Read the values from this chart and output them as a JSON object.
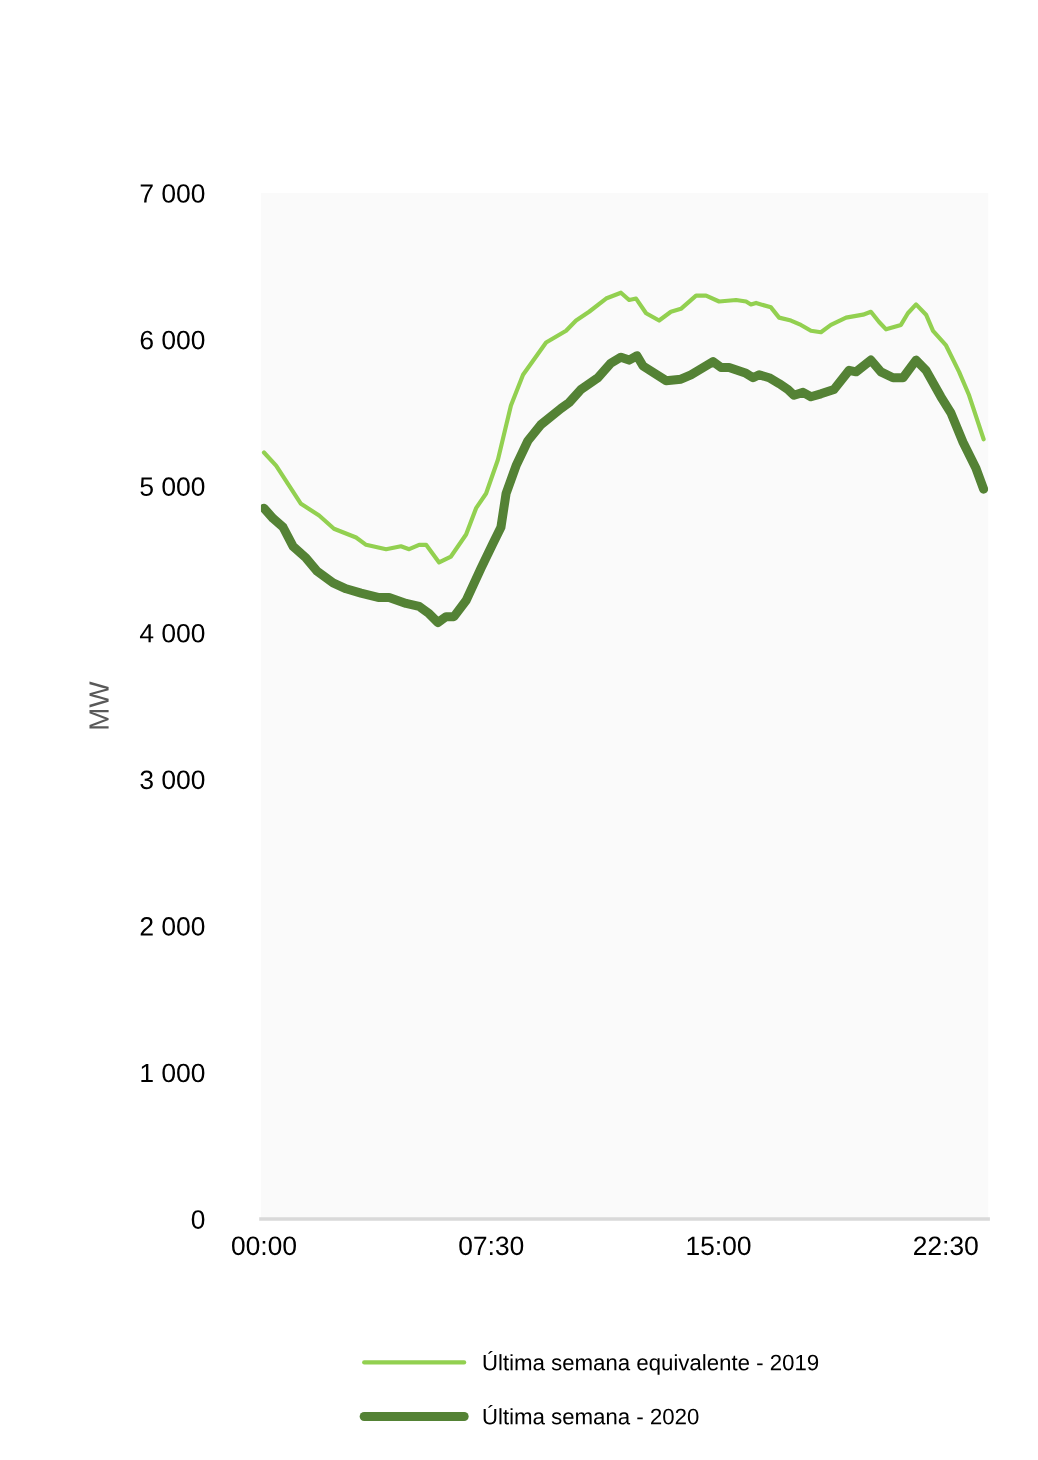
{
  "chart_data": {
    "type": "line",
    "ylabel": "MW",
    "ylim": [
      0,
      7000
    ],
    "yticks": [
      {
        "value": 0,
        "label": "0"
      },
      {
        "value": 1000,
        "label": "1 000"
      },
      {
        "value": 2000,
        "label": "2 000"
      },
      {
        "value": 3000,
        "label": "3 000"
      },
      {
        "value": 4000,
        "label": "4 000"
      },
      {
        "value": 5000,
        "label": "5 000"
      },
      {
        "value": 6000,
        "label": "6 000"
      },
      {
        "value": 7000,
        "label": "7 000"
      }
    ],
    "xlim": [
      -0.1,
      23.9
    ],
    "xticks": [
      {
        "value": 0,
        "label": "00:00"
      },
      {
        "value": 7.5,
        "label": "07:30"
      },
      {
        "value": 15,
        "label": "15:00"
      },
      {
        "value": 22.5,
        "label": "22:30"
      }
    ],
    "grid": false,
    "legend": "bottom",
    "marker": "none",
    "line_style": "solid",
    "series": [
      {
        "name": "Última semana equivalente - 2019",
        "color": "#92d050",
        "x": [
          0,
          0.4,
          1.22,
          1.82,
          2.31,
          3.04,
          3.37,
          4.03,
          4.52,
          4.79,
          5.12,
          5.35,
          5.78,
          6.17,
          6.67,
          7.0,
          7.33,
          7.72,
          8.15,
          8.55,
          9.31,
          9.97,
          10.3,
          10.73,
          11.29,
          11.78,
          12.05,
          12.28,
          12.61,
          13.04,
          13.43,
          13.76,
          14.26,
          14.59,
          15.02,
          15.58,
          15.91,
          16.07,
          16.24,
          16.73,
          17.0,
          17.39,
          17.72,
          18.05,
          18.38,
          18.71,
          19.21,
          19.77,
          20.03,
          20.3,
          20.53,
          21.02,
          21.25,
          21.52,
          21.85,
          22.08,
          22.51,
          22.94,
          23.27,
          23.75
        ],
        "values": [
          5230,
          5140,
          4880,
          4800,
          4710,
          4650,
          4600,
          4570,
          4590,
          4570,
          4600,
          4600,
          4480,
          4520,
          4670,
          4850,
          4950,
          5180,
          5550,
          5760,
          5980,
          6060,
          6130,
          6190,
          6280,
          6320,
          6270,
          6280,
          6180,
          6130,
          6190,
          6210,
          6300,
          6300,
          6260,
          6270,
          6260,
          6240,
          6250,
          6220,
          6150,
          6130,
          6100,
          6060,
          6050,
          6100,
          6150,
          6170,
          6190,
          6120,
          6070,
          6100,
          6180,
          6240,
          6170,
          6060,
          5960,
          5780,
          5620,
          5320
        ]
      },
      {
        "name": "Última semana - 2020",
        "color": "#548235",
        "x": [
          0,
          0.3,
          0.63,
          0.96,
          1.39,
          1.75,
          2.28,
          2.71,
          3.2,
          3.8,
          4.13,
          4.69,
          5.12,
          5.45,
          5.74,
          6.01,
          6.27,
          6.67,
          7.16,
          7.56,
          7.82,
          7.99,
          8.32,
          8.71,
          9.14,
          9.8,
          10.07,
          10.46,
          11.02,
          11.45,
          11.78,
          12.05,
          12.31,
          12.51,
          13.27,
          13.76,
          14.09,
          14.82,
          15.08,
          15.35,
          15.91,
          16.14,
          16.34,
          16.67,
          17.0,
          17.29,
          17.49,
          17.79,
          18.05,
          18.38,
          18.81,
          19.31,
          19.54,
          20.03,
          20.36,
          20.76,
          21.09,
          21.52,
          21.85,
          22.34,
          22.67,
          23.07,
          23.5,
          23.75
        ],
        "values": [
          4850,
          4780,
          4720,
          4590,
          4510,
          4420,
          4340,
          4300,
          4270,
          4240,
          4240,
          4200,
          4180,
          4130,
          4070,
          4110,
          4110,
          4220,
          4440,
          4610,
          4720,
          4950,
          5140,
          5310,
          5420,
          5530,
          5570,
          5660,
          5740,
          5840,
          5880,
          5860,
          5890,
          5820,
          5720,
          5730,
          5760,
          5850,
          5810,
          5810,
          5770,
          5740,
          5760,
          5740,
          5700,
          5660,
          5620,
          5640,
          5610,
          5630,
          5660,
          5790,
          5780,
          5860,
          5780,
          5740,
          5740,
          5860,
          5790,
          5610,
          5500,
          5300,
          5120,
          4980
        ]
      }
    ]
  }
}
